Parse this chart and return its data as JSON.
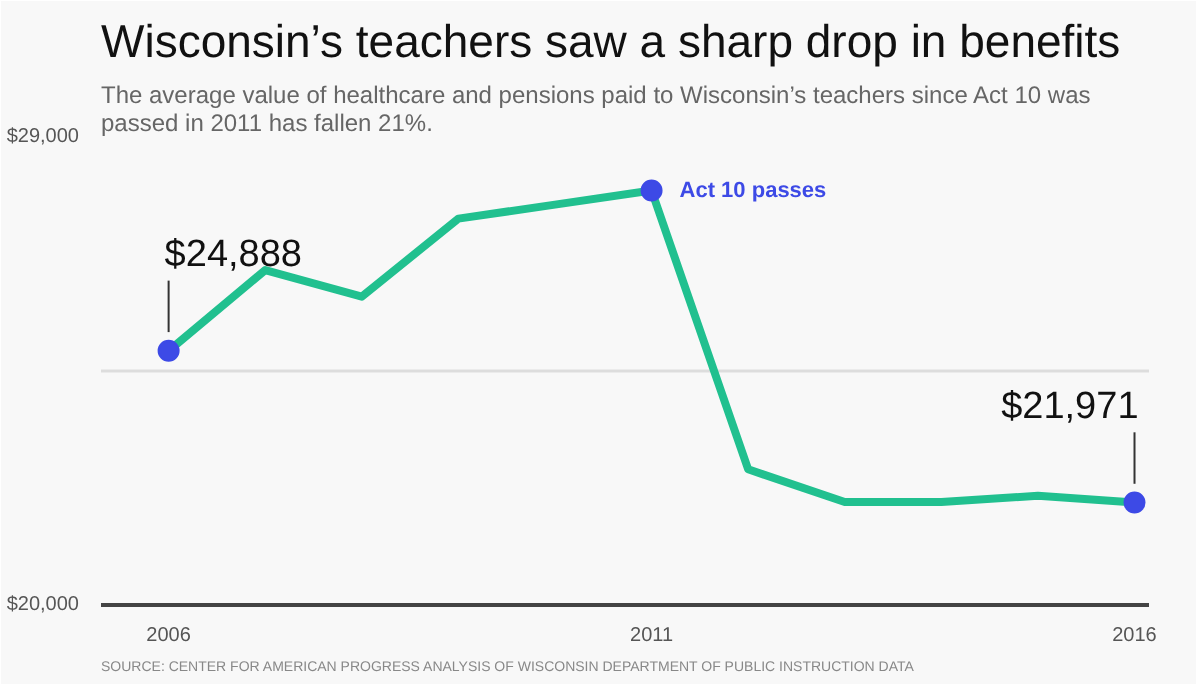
{
  "chart_data": {
    "type": "line",
    "title": "Wisconsin’s teachers saw a sharp drop in benefits",
    "subtitle": "The average value of healthcare and pensions paid to Wisconsin’s teachers since Act 10 was passed in 2011 has fallen 21%.",
    "x": [
      2006,
      2007,
      2008,
      2009,
      2010,
      2011,
      2012,
      2013,
      2014,
      2015,
      2016
    ],
    "series": [
      {
        "color": "#21c08f",
        "values": [
          24888,
          26440,
          25930,
          27430,
          27700,
          27970,
          22610,
          21980,
          21980,
          22100,
          21971
        ]
      }
    ],
    "xlim": [
      2005.3,
      2016.15
    ],
    "xticks": [
      2006,
      2011,
      2016
    ],
    "ylim": [
      20000,
      29000
    ],
    "yticks": [
      {
        "value": 29000,
        "label": "$29,000"
      },
      {
        "value": 24500,
        "label": null
      },
      {
        "value": 20000,
        "label": "$20,000"
      }
    ],
    "grid": "y",
    "marker": "none",
    "annotations": [
      {
        "text": "$24,888",
        "x": 2006,
        "y": 24888
      },
      {
        "text": "Act 10 passes",
        "x": 2011,
        "y": 27970
      },
      {
        "text": "$21,971",
        "x": 2016,
        "y": 21971
      },
      "SOURCE: CENTER FOR AMERICAN PROGRESS ANALYSIS OF WISCONSIN DEPARTMENT OF PUBLIC INSTRUCTION DATA"
    ]
  }
}
